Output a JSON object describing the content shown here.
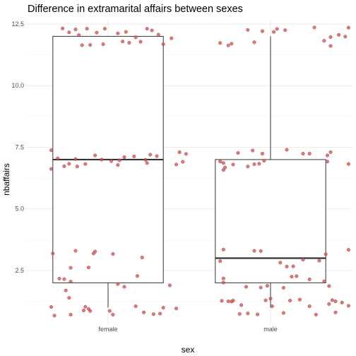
{
  "chart_data": {
    "type": "boxplot",
    "title": "Difference in extramarital affairs between sexes",
    "xlabel": "sex",
    "ylabel": "nbaffairs",
    "categories": [
      "female",
      "male"
    ],
    "ylim": [
      0.35,
      12.7
    ],
    "yticks": [
      2.5,
      5.0,
      7.5,
      10.0,
      12.5
    ],
    "ytick_labels": [
      "2.5",
      "5.0",
      "7.5",
      "10.0",
      "12.5"
    ],
    "grid": true,
    "colors": {
      "points": "#cd4f4f",
      "box": "#333333"
    },
    "boxes": [
      {
        "category": "female",
        "whisker_low": 1,
        "q1": 2,
        "median": 7,
        "q3": 12,
        "whisker_high": 12
      },
      {
        "category": "male",
        "whisker_low": 1,
        "q1": 2,
        "median": 3,
        "q3": 7,
        "whisker_high": 12
      }
    ],
    "points": [
      {
        "category": "female",
        "x": -0.28,
        "y": 12.32
      },
      {
        "category": "female",
        "x": -0.24,
        "y": 12.16
      },
      {
        "category": "female",
        "x": -0.2,
        "y": 12.28
      },
      {
        "category": "female",
        "x": -0.13,
        "y": 12.31
      },
      {
        "category": "female",
        "x": -0.07,
        "y": 12.15
      },
      {
        "category": "female",
        "x": -0.18,
        "y": 12.05
      },
      {
        "category": "female",
        "x": -0.02,
        "y": 12.31
      },
      {
        "category": "female",
        "x": 0.06,
        "y": 12.12
      },
      {
        "category": "female",
        "x": 0.11,
        "y": 12.18
      },
      {
        "category": "female",
        "x": 0.17,
        "y": 11.96
      },
      {
        "category": "female",
        "x": 0.24,
        "y": 12.31
      },
      {
        "category": "female",
        "x": 0.27,
        "y": 12.24
      },
      {
        "category": "female",
        "x": 0.31,
        "y": 12.07
      },
      {
        "category": "female",
        "x": 0.39,
        "y": 11.92
      },
      {
        "category": "female",
        "x": -0.16,
        "y": 11.64
      },
      {
        "category": "female",
        "x": -0.11,
        "y": 11.65
      },
      {
        "category": "female",
        "x": -0.03,
        "y": 11.68
      },
      {
        "category": "female",
        "x": 0.09,
        "y": 11.79
      },
      {
        "category": "female",
        "x": 0.13,
        "y": 11.74
      },
      {
        "category": "female",
        "x": 0.2,
        "y": 11.78
      },
      {
        "category": "female",
        "x": 0.34,
        "y": 11.68
      },
      {
        "category": "female",
        "x": -0.35,
        "y": 7.38
      },
      {
        "category": "female",
        "x": -0.31,
        "y": 7.05
      },
      {
        "category": "female",
        "x": -0.08,
        "y": 7.17
      },
      {
        "category": "female",
        "x": 0.1,
        "y": 7.1
      },
      {
        "category": "female",
        "x": 0.16,
        "y": 7.13
      },
      {
        "category": "female",
        "x": 0.26,
        "y": 7.2
      },
      {
        "category": "female",
        "x": 0.3,
        "y": 7.14
      },
      {
        "category": "female",
        "x": 0.44,
        "y": 7.3
      },
      {
        "category": "female",
        "x": 0.48,
        "y": 7.23
      },
      {
        "category": "female",
        "x": -0.2,
        "y": 7.02
      },
      {
        "category": "female",
        "x": -0.04,
        "y": 7.0
      },
      {
        "category": "female",
        "x": 0.02,
        "y": 6.94
      },
      {
        "category": "female",
        "x": 0.07,
        "y": 6.97
      },
      {
        "category": "female",
        "x": 0.23,
        "y": 6.99
      },
      {
        "category": "female",
        "x": -0.27,
        "y": 6.73
      },
      {
        "category": "female",
        "x": -0.24,
        "y": 6.83
      },
      {
        "category": "female",
        "x": -0.19,
        "y": 6.72
      },
      {
        "category": "female",
        "x": -0.14,
        "y": 6.82
      },
      {
        "category": "female",
        "x": 0.06,
        "y": 6.78
      },
      {
        "category": "female",
        "x": 0.24,
        "y": 6.86
      },
      {
        "category": "female",
        "x": 0.42,
        "y": 6.8
      },
      {
        "category": "female",
        "x": 0.46,
        "y": 6.91
      },
      {
        "category": "female",
        "x": -0.35,
        "y": 6.62
      },
      {
        "category": "female",
        "x": -0.34,
        "y": 3.19
      },
      {
        "category": "female",
        "x": -0.2,
        "y": 3.3
      },
      {
        "category": "female",
        "x": -0.08,
        "y": 3.27
      },
      {
        "category": "female",
        "x": 0.03,
        "y": 3.17
      },
      {
        "category": "female",
        "x": 0.21,
        "y": 3.03
      },
      {
        "category": "female",
        "x": -0.09,
        "y": 3.19
      },
      {
        "category": "female",
        "x": -0.23,
        "y": 2.61
      },
      {
        "category": "female",
        "x": -0.12,
        "y": 2.62
      },
      {
        "category": "female",
        "x": 0.18,
        "y": 2.28
      },
      {
        "category": "female",
        "x": -0.3,
        "y": 2.17
      },
      {
        "category": "female",
        "x": -0.27,
        "y": 2.15
      },
      {
        "category": "female",
        "x": -0.23,
        "y": 2.05
      },
      {
        "category": "female",
        "x": 0.06,
        "y": 1.95
      },
      {
        "category": "female",
        "x": 0.38,
        "y": 1.9
      },
      {
        "category": "female",
        "x": 0.1,
        "y": 1.84
      },
      {
        "category": "female",
        "x": -0.26,
        "y": 1.69
      },
      {
        "category": "female",
        "x": -0.24,
        "y": 1.39
      },
      {
        "category": "female",
        "x": -0.35,
        "y": 1.02
      },
      {
        "category": "female",
        "x": -0.14,
        "y": 1.03
      },
      {
        "category": "female",
        "x": 0.17,
        "y": 1.05
      },
      {
        "category": "female",
        "x": 0.34,
        "y": 0.99
      },
      {
        "category": "female",
        "x": 0.42,
        "y": 0.96
      },
      {
        "category": "female",
        "x": -0.12,
        "y": 0.94
      },
      {
        "category": "female",
        "x": -0.15,
        "y": 0.88
      },
      {
        "category": "female",
        "x": -0.11,
        "y": 0.86
      },
      {
        "category": "female",
        "x": 0.01,
        "y": 0.86
      },
      {
        "category": "female",
        "x": 0.22,
        "y": 0.8
      },
      {
        "category": "female",
        "x": -0.33,
        "y": 0.67
      },
      {
        "category": "female",
        "x": -0.23,
        "y": 0.71
      },
      {
        "category": "female",
        "x": 0.03,
        "y": 0.71
      },
      {
        "category": "female",
        "x": 0.28,
        "y": 0.73
      },
      {
        "category": "female",
        "x": 0.32,
        "y": 0.75
      },
      {
        "category": "male",
        "x": 0.48,
        "y": 12.35
      },
      {
        "category": "male",
        "x": -0.14,
        "y": 12.26
      },
      {
        "category": "male",
        "x": -0.05,
        "y": 12.21
      },
      {
        "category": "male",
        "x": 0.02,
        "y": 12.18
      },
      {
        "category": "male",
        "x": 0.04,
        "y": 12.3
      },
      {
        "category": "male",
        "x": 0.09,
        "y": 12.25
      },
      {
        "category": "male",
        "x": 0.27,
        "y": 12.36
      },
      {
        "category": "male",
        "x": 0.42,
        "y": 12.06
      },
      {
        "category": "male",
        "x": 0.37,
        "y": 11.97
      },
      {
        "category": "male",
        "x": -0.31,
        "y": 11.73
      },
      {
        "category": "male",
        "x": -0.26,
        "y": 11.63
      },
      {
        "category": "male",
        "x": -0.24,
        "y": 11.7
      },
      {
        "category": "male",
        "x": -0.1,
        "y": 11.76
      },
      {
        "category": "male",
        "x": 0.33,
        "y": 11.82
      },
      {
        "category": "male",
        "x": 0.37,
        "y": 11.61
      },
      {
        "category": "male",
        "x": 0.46,
        "y": 11.99
      },
      {
        "category": "male",
        "x": -0.2,
        "y": 7.27
      },
      {
        "category": "male",
        "x": -0.11,
        "y": 7.37
      },
      {
        "category": "male",
        "x": -0.05,
        "y": 7.24
      },
      {
        "category": "male",
        "x": -0.04,
        "y": 6.95
      },
      {
        "category": "male",
        "x": 0.1,
        "y": 7.4
      },
      {
        "category": "male",
        "x": 0.2,
        "y": 7.24
      },
      {
        "category": "male",
        "x": 0.24,
        "y": 7.24
      },
      {
        "category": "male",
        "x": 0.35,
        "y": 7.17
      },
      {
        "category": "male",
        "x": 0.37,
        "y": 7.3
      },
      {
        "category": "male",
        "x": -0.31,
        "y": 6.92
      },
      {
        "category": "male",
        "x": -0.29,
        "y": 6.86
      },
      {
        "category": "male",
        "x": -0.28,
        "y": 6.68
      },
      {
        "category": "male",
        "x": -0.23,
        "y": 6.8
      },
      {
        "category": "male",
        "x": -0.14,
        "y": 6.72
      },
      {
        "category": "male",
        "x": -0.1,
        "y": 6.81
      },
      {
        "category": "male",
        "x": -0.07,
        "y": 6.83
      },
      {
        "category": "male",
        "x": 0.35,
        "y": 6.92
      },
      {
        "category": "male",
        "x": 0.48,
        "y": 6.82
      },
      {
        "category": "male",
        "x": -0.29,
        "y": 6.58
      },
      {
        "category": "male",
        "x": -0.29,
        "y": 3.35
      },
      {
        "category": "male",
        "x": -0.1,
        "y": 3.3
      },
      {
        "category": "male",
        "x": -0.06,
        "y": 3.29
      },
      {
        "category": "male",
        "x": 0.48,
        "y": 3.34
      },
      {
        "category": "male",
        "x": 0.34,
        "y": 3.16
      },
      {
        "category": "male",
        "x": -0.31,
        "y": 2.88
      },
      {
        "category": "male",
        "x": 0.06,
        "y": 2.82
      },
      {
        "category": "male",
        "x": 0.1,
        "y": 2.66
      },
      {
        "category": "male",
        "x": 0.14,
        "y": 2.67
      },
      {
        "category": "male",
        "x": 0.2,
        "y": 2.94
      },
      {
        "category": "male",
        "x": 0.3,
        "y": 2.9
      },
      {
        "category": "male",
        "x": 0.13,
        "y": 2.25
      },
      {
        "category": "male",
        "x": 0.16,
        "y": 2.27
      },
      {
        "category": "male",
        "x": -0.29,
        "y": 2.18
      },
      {
        "category": "male",
        "x": 0.24,
        "y": 2.14
      },
      {
        "category": "male",
        "x": 0.33,
        "y": 2.06
      },
      {
        "category": "male",
        "x": -0.29,
        "y": 2.01
      },
      {
        "category": "male",
        "x": -0.02,
        "y": 1.88
      },
      {
        "category": "male",
        "x": 0.08,
        "y": 1.8
      },
      {
        "category": "male",
        "x": -0.06,
        "y": 1.81
      },
      {
        "category": "male",
        "x": -0.15,
        "y": 1.84
      },
      {
        "category": "male",
        "x": 0.36,
        "y": 1.87
      },
      {
        "category": "male",
        "x": 0.0,
        "y": 1.36
      },
      {
        "category": "male",
        "x": -0.3,
        "y": 1.27
      },
      {
        "category": "male",
        "x": -0.26,
        "y": 1.25
      },
      {
        "category": "male",
        "x": -0.24,
        "y": 1.24
      },
      {
        "category": "male",
        "x": -0.23,
        "y": 1.28
      },
      {
        "category": "male",
        "x": -0.03,
        "y": 1.29
      },
      {
        "category": "male",
        "x": 0.12,
        "y": 1.28
      },
      {
        "category": "male",
        "x": 0.18,
        "y": 1.32
      },
      {
        "category": "male",
        "x": 0.38,
        "y": 1.3
      },
      {
        "category": "male",
        "x": 0.4,
        "y": 1.25
      },
      {
        "category": "male",
        "x": 0.44,
        "y": 1.2
      },
      {
        "category": "male",
        "x": -0.18,
        "y": 1.1
      },
      {
        "category": "male",
        "x": 0.01,
        "y": 1.05
      },
      {
        "category": "male",
        "x": 0.24,
        "y": 1.05
      },
      {
        "category": "male",
        "x": 0.36,
        "y": 1.14
      },
      {
        "category": "male",
        "x": 0.48,
        "y": 1.07
      },
      {
        "category": "male",
        "x": -0.19,
        "y": 0.74
      },
      {
        "category": "male",
        "x": -0.08,
        "y": 0.72
      },
      {
        "category": "male",
        "x": 0.08,
        "y": 0.78
      },
      {
        "category": "male",
        "x": -0.14,
        "y": 0.76
      },
      {
        "category": "male",
        "x": 0.28,
        "y": 0.71
      },
      {
        "category": "male",
        "x": 0.4,
        "y": 0.8
      }
    ]
  }
}
